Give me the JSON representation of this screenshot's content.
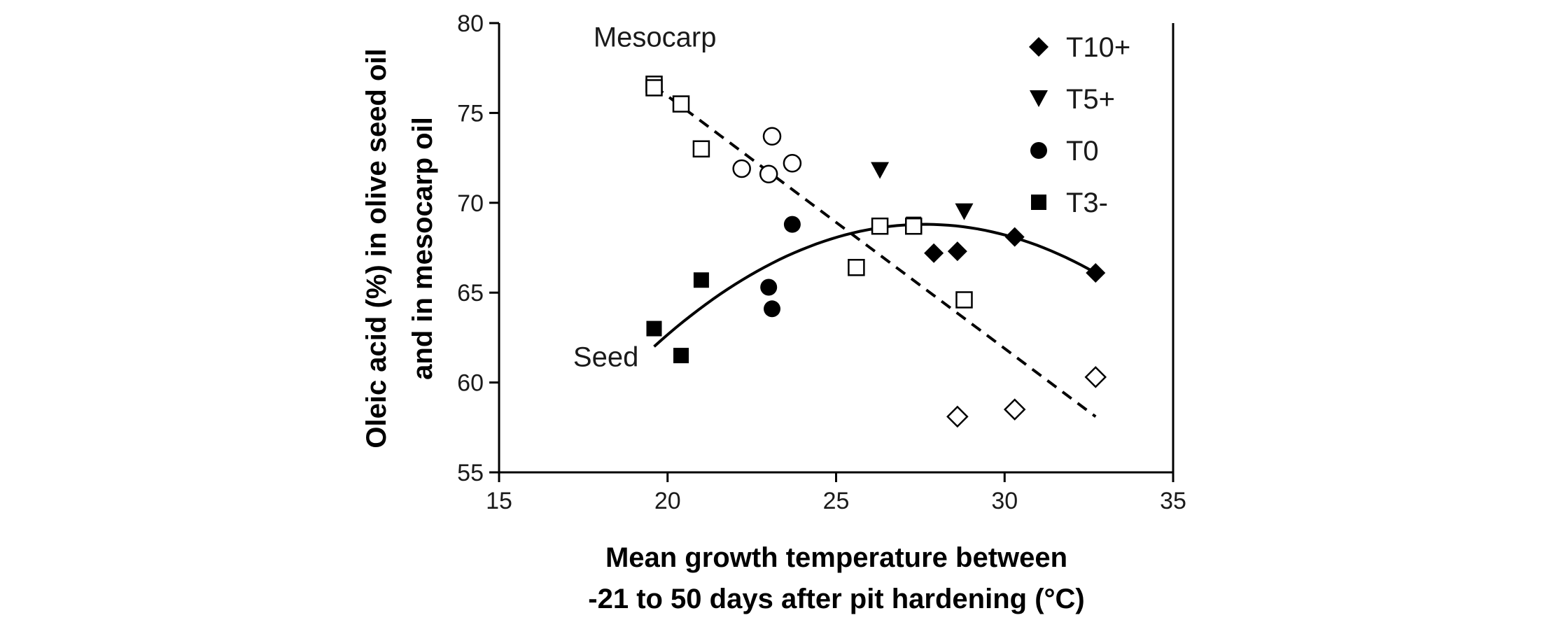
{
  "chart_data": {
    "type": "scatter",
    "xlabel_lines": [
      "Mean growth temperature between",
      "-21 to 50 days after pit hardening (°C)"
    ],
    "ylabel_lines": [
      "Oleic acid (%) in olive seed oil",
      "and in mesocarp oil"
    ],
    "xlim": [
      15,
      35
    ],
    "ylim": [
      55,
      80
    ],
    "xticks": [
      "15",
      "20",
      "25",
      "30",
      "35"
    ],
    "yticks": [
      "55",
      "60",
      "65",
      "70",
      "75",
      "80"
    ],
    "grid": false,
    "legend": {
      "position": "top-right",
      "entries": [
        {
          "label": "T10+",
          "marker": "diamond"
        },
        {
          "label": "T5+",
          "marker": "triangle-down"
        },
        {
          "label": "T0",
          "marker": "circle"
        },
        {
          "label": "T3-",
          "marker": "square"
        }
      ]
    },
    "annotations": [
      {
        "text": "Mesocarp",
        "x": 17.8,
        "y": 78.7
      },
      {
        "text": "Seed",
        "x": 17.2,
        "y": 60.9
      }
    ],
    "series": [
      {
        "group": "Seed",
        "style": "filled",
        "points": [
          {
            "x": 27.9,
            "y": 67.2,
            "marker": "diamond"
          },
          {
            "x": 28.6,
            "y": 67.3,
            "marker": "diamond"
          },
          {
            "x": 30.3,
            "y": 68.1,
            "marker": "diamond"
          },
          {
            "x": 32.7,
            "y": 66.1,
            "marker": "diamond"
          },
          {
            "x": 26.3,
            "y": 71.8,
            "marker": "triangle-down"
          },
          {
            "x": 28.8,
            "y": 69.5,
            "marker": "triangle-down"
          },
          {
            "x": 23.0,
            "y": 65.3,
            "marker": "circle"
          },
          {
            "x": 23.1,
            "y": 64.1,
            "marker": "circle"
          },
          {
            "x": 23.7,
            "y": 68.8,
            "marker": "circle"
          },
          {
            "x": 19.6,
            "y": 63.0,
            "marker": "square"
          },
          {
            "x": 20.4,
            "y": 61.5,
            "marker": "square"
          },
          {
            "x": 21.0,
            "y": 65.7,
            "marker": "square"
          },
          {
            "x": 27.3,
            "y": 68.8,
            "marker": "square"
          }
        ]
      },
      {
        "group": "Mesocarp",
        "style": "open",
        "points": [
          {
            "x": 19.6,
            "y": 76.6,
            "marker": "square"
          },
          {
            "x": 19.6,
            "y": 76.4,
            "marker": "square"
          },
          {
            "x": 20.4,
            "y": 75.5,
            "marker": "square"
          },
          {
            "x": 21.0,
            "y": 73.0,
            "marker": "square"
          },
          {
            "x": 25.6,
            "y": 66.4,
            "marker": "square"
          },
          {
            "x": 26.3,
            "y": 68.7,
            "marker": "square"
          },
          {
            "x": 27.3,
            "y": 68.7,
            "marker": "square"
          },
          {
            "x": 28.8,
            "y": 64.6,
            "marker": "square"
          },
          {
            "x": 22.2,
            "y": 71.9,
            "marker": "circle"
          },
          {
            "x": 23.0,
            "y": 71.6,
            "marker": "circle"
          },
          {
            "x": 23.1,
            "y": 73.7,
            "marker": "circle"
          },
          {
            "x": 23.7,
            "y": 72.2,
            "marker": "circle"
          },
          {
            "x": 28.6,
            "y": 58.1,
            "marker": "diamond"
          },
          {
            "x": 30.3,
            "y": 58.5,
            "marker": "diamond"
          },
          {
            "x": 32.7,
            "y": 60.3,
            "marker": "diamond"
          }
        ]
      }
    ],
    "fits": [
      {
        "group": "Seed",
        "style": "solid",
        "kind": "quadratic",
        "x_range": [
          19.6,
          32.7
        ],
        "y_at": [
          [
            19.6,
            62.0
          ],
          [
            27.8,
            68.8
          ],
          [
            32.7,
            66.1
          ]
        ]
      },
      {
        "group": "Mesocarp",
        "style": "dashed",
        "kind": "linear",
        "x_range": [
          19.6,
          32.7
        ],
        "y_at": [
          [
            19.6,
            76.5
          ],
          [
            32.7,
            58.1
          ]
        ]
      }
    ]
  }
}
